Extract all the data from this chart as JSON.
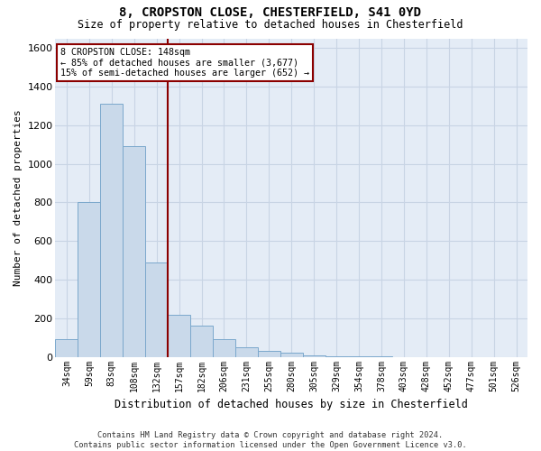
{
  "title_line1": "8, CROPSTON CLOSE, CHESTERFIELD, S41 0YD",
  "title_line2": "Size of property relative to detached houses in Chesterfield",
  "xlabel": "Distribution of detached houses by size in Chesterfield",
  "ylabel": "Number of detached properties",
  "bar_labels": [
    "34sqm",
    "59sqm",
    "83sqm",
    "108sqm",
    "132sqm",
    "157sqm",
    "182sqm",
    "206sqm",
    "231sqm",
    "255sqm",
    "280sqm",
    "305sqm",
    "329sqm",
    "354sqm",
    "378sqm",
    "403sqm",
    "428sqm",
    "452sqm",
    "477sqm",
    "501sqm",
    "526sqm"
  ],
  "bar_values": [
    90,
    800,
    1310,
    1090,
    490,
    220,
    160,
    90,
    50,
    30,
    22,
    8,
    2,
    2,
    1,
    0,
    0,
    0,
    0,
    0,
    0
  ],
  "bar_color": "#c9d9ea",
  "bar_edgecolor": "#7ba8cc",
  "vline_x": 4.5,
  "vline_color": "#8b0000",
  "ylim": [
    0,
    1650
  ],
  "yticks": [
    0,
    200,
    400,
    600,
    800,
    1000,
    1200,
    1400,
    1600
  ],
  "annotation_text": "8 CROPSTON CLOSE: 148sqm\n← 85% of detached houses are smaller (3,677)\n15% of semi-detached houses are larger (652) →",
  "annotation_box_facecolor": "#ffffff",
  "annotation_box_edgecolor": "#8b0000",
  "grid_color": "#c8d4e4",
  "bg_color": "#e4ecf6",
  "footer_line1": "Contains HM Land Registry data © Crown copyright and database right 2024.",
  "footer_line2": "Contains public sector information licensed under the Open Government Licence v3.0.",
  "fig_width": 6.0,
  "fig_height": 5.0,
  "dpi": 100
}
